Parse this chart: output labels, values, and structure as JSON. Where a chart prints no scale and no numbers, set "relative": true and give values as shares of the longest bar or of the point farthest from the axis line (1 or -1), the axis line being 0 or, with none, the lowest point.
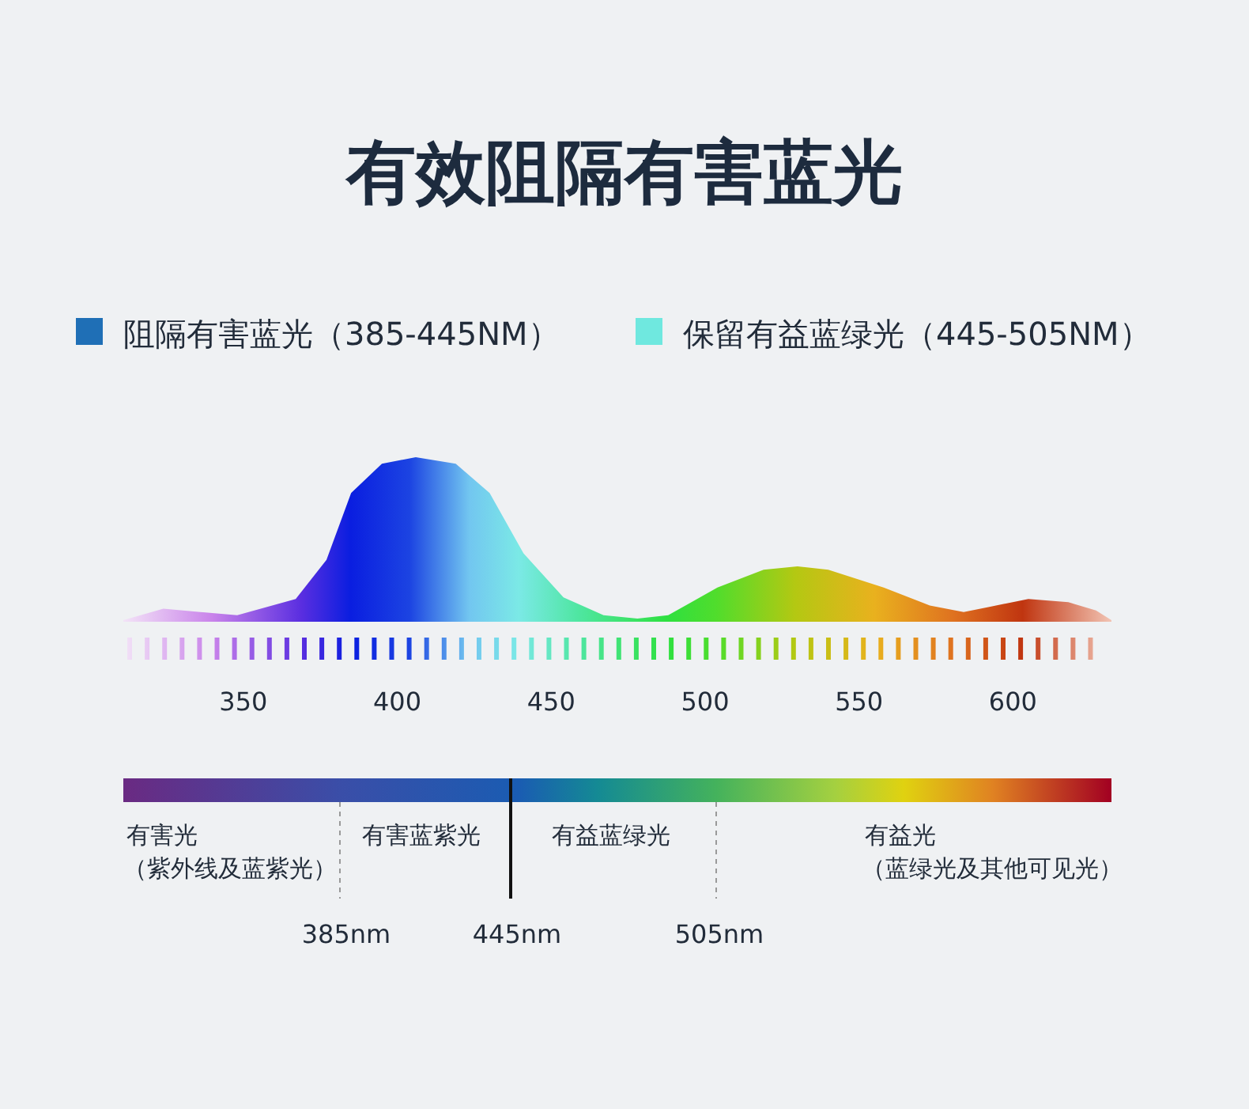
{
  "chart_data": [
    {
      "type": "area",
      "relative": true,
      "title": "有效阻隔有害蓝光",
      "annotations": [
        "阻隔有害蓝光（385-445NM）",
        "保留有益蓝绿光（445-505NM）"
      ],
      "x": [
        311,
        324,
        348,
        367,
        377,
        385,
        395,
        406,
        419,
        430,
        441,
        454,
        467,
        478,
        488,
        504,
        519,
        530,
        540,
        558,
        573,
        584,
        592,
        605,
        618,
        627,
        632
      ],
      "values": [
        0,
        0.07,
        0.03,
        0.13,
        0.37,
        0.78,
        0.96,
        1,
        0.96,
        0.78,
        0.41,
        0.14,
        0.03,
        0.01,
        0.03,
        0.2,
        0.31,
        0.33,
        0.31,
        0.2,
        0.09,
        0.05,
        0.08,
        0.13,
        0.11,
        0.06,
        0
      ],
      "xlim": [
        311,
        632
      ],
      "xticks": [
        350,
        400,
        450,
        500,
        550,
        600
      ]
    },
    {
      "type": "other",
      "annotations": [
        "有害光",
        "（紫外线及蓝紫光）",
        "有害蓝紫光",
        "有益蓝绿光",
        "有益光",
        "（蓝绿光及其他可见光）",
        "385nm",
        "445nm",
        "505nm"
      ]
    }
  ]
}
